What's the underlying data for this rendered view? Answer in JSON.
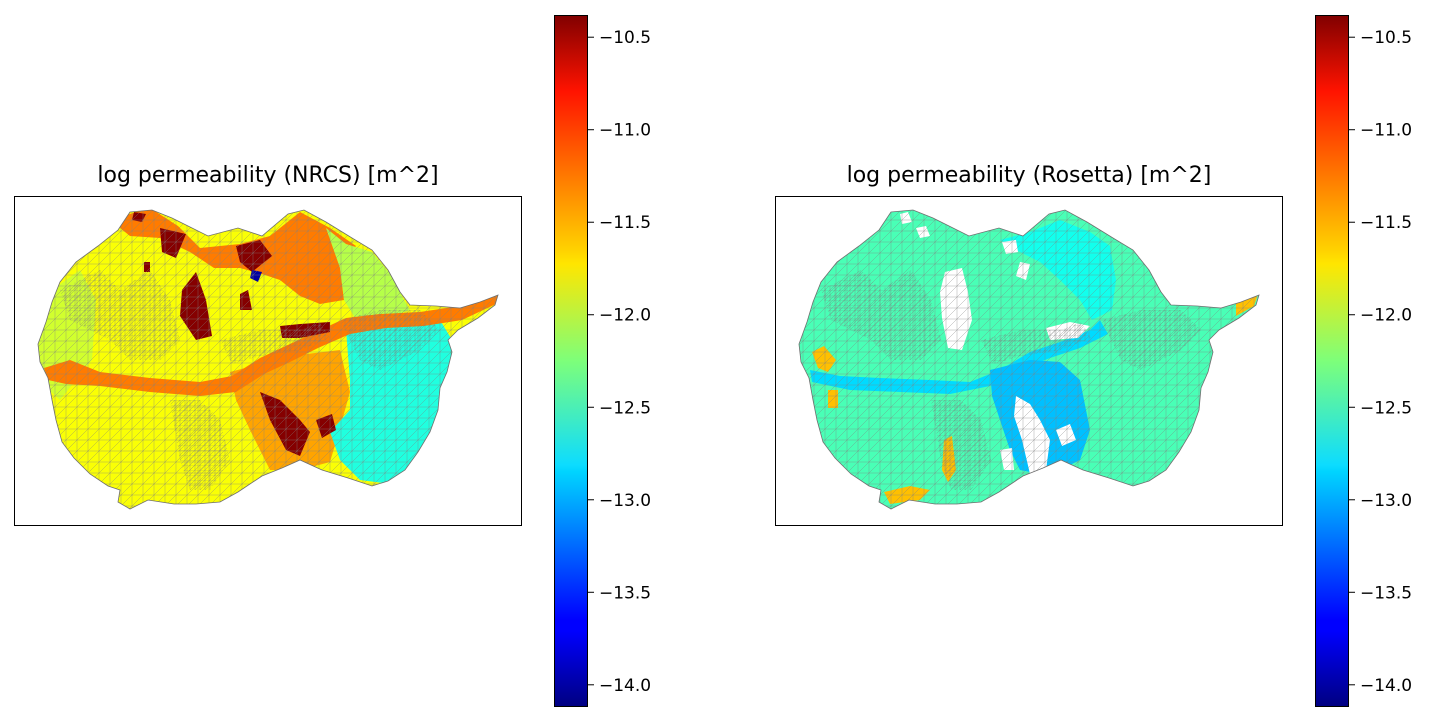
{
  "chart_data": [
    {
      "type": "heatmap",
      "title": "log permeability (NRCS) [m^2]",
      "xlabel": "",
      "ylabel": "",
      "colormap": "jet",
      "colorbar": {
        "vmin": -14.12,
        "vmax": -10.38,
        "ticks": [
          -10.5,
          -11.0,
          -11.5,
          -12.0,
          -12.5,
          -13.0,
          -13.5,
          -14.0
        ],
        "tick_labels": [
          "−10.5",
          "−11.0",
          "−11.5",
          "−12.0",
          "−12.5",
          "−13.0",
          "−13.5",
          "−14.0"
        ]
      },
      "regions": [
        {
          "name": "background",
          "value": -11.8
        },
        {
          "name": "west-lobe",
          "value": -11.95
        },
        {
          "name": "north-band",
          "value": -11.3
        },
        {
          "name": "south-center",
          "value": -11.45
        },
        {
          "name": "east-ridge",
          "value": -12.05
        },
        {
          "name": "east-lobe",
          "value": -12.6
        },
        {
          "name": "river-corridor",
          "value": -11.3
        },
        {
          "name": "dark-patches",
          "value": -10.4
        },
        {
          "name": "minimum-cell",
          "value": -14.0
        }
      ]
    },
    {
      "type": "heatmap",
      "title": "log permeability (Rosetta) [m^2]",
      "xlabel": "",
      "ylabel": "",
      "colormap": "jet",
      "colorbar": {
        "vmin": -14.12,
        "vmax": -10.38,
        "ticks": [
          -10.5,
          -11.0,
          -11.5,
          -12.0,
          -12.5,
          -13.0,
          -13.5,
          -14.0
        ],
        "tick_labels": [
          "−10.5",
          "−11.0",
          "−11.5",
          "−12.0",
          "−12.5",
          "−13.0",
          "−13.5",
          "−14.0"
        ]
      },
      "regions": [
        {
          "name": "background",
          "value": -12.45
        },
        {
          "name": "north-cyan",
          "value": -12.65
        },
        {
          "name": "river-corridor",
          "value": -12.85
        },
        {
          "name": "south-blue",
          "value": -12.95
        },
        {
          "name": "yellow-strips",
          "value": -11.55
        },
        {
          "name": "missing-cells",
          "value": null
        }
      ]
    }
  ]
}
